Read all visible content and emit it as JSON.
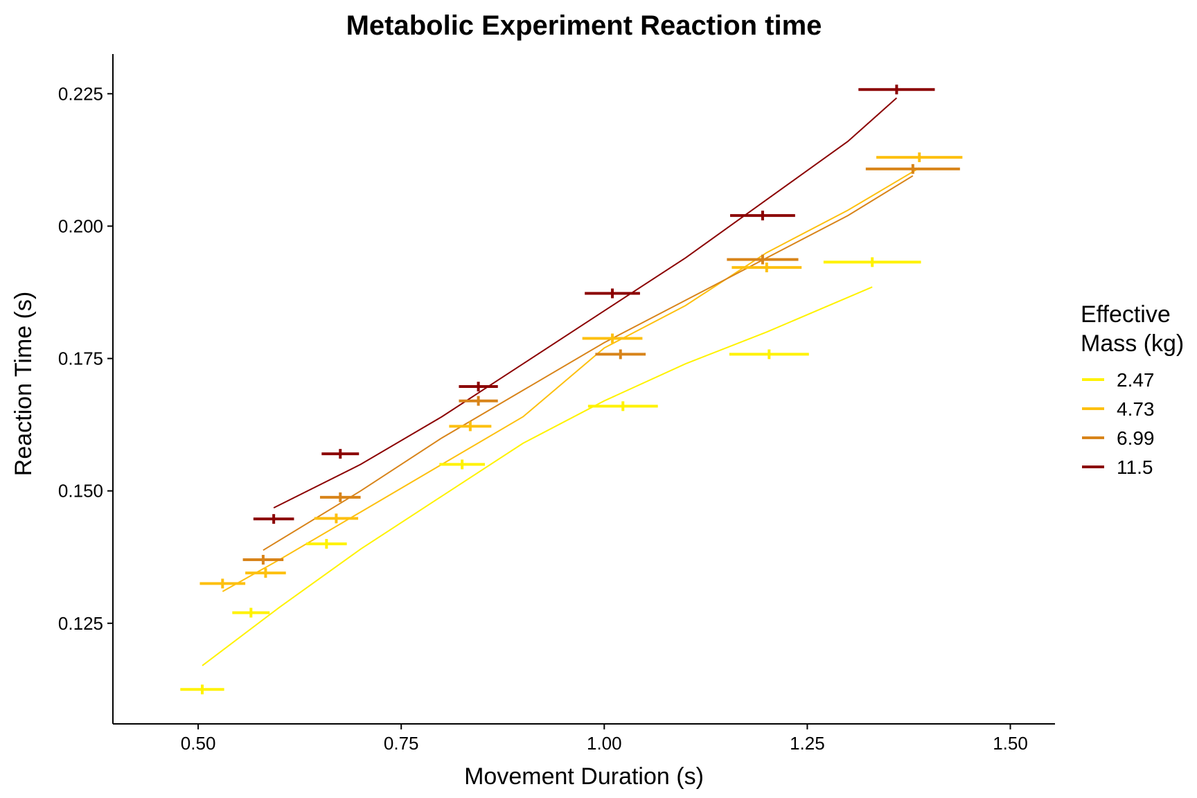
{
  "chart_data": {
    "type": "scatter",
    "title": "Metabolic Experiment Reaction time",
    "xlabel": "Movement Duration (s)",
    "ylabel": "Reaction Time (s)",
    "xlim": [
      0.395,
      1.555
    ],
    "ylim": [
      0.106,
      0.2325
    ],
    "x_ticks": [
      "0.50",
      "0.75",
      "1.00",
      "1.25",
      "1.50"
    ],
    "y_ticks": [
      "0.125",
      "0.150",
      "0.175",
      "0.200",
      "0.225"
    ],
    "grid": false,
    "legend": {
      "title_line1": "Effective",
      "title_line2": "Mass (kg)",
      "position": "right"
    },
    "series": [
      {
        "name": "2.47",
        "color": "#FFF200",
        "points": [
          {
            "x": 0.505,
            "y": 0.1125,
            "xerr": 0.027
          },
          {
            "x": 0.565,
            "y": 0.127,
            "xerr": 0.023
          },
          {
            "x": 0.658,
            "y": 0.14,
            "xerr": 0.025
          },
          {
            "x": 0.825,
            "y": 0.155,
            "xerr": 0.028
          },
          {
            "x": 1.023,
            "y": 0.166,
            "xerr": 0.043
          },
          {
            "x": 1.203,
            "y": 0.1758,
            "xerr": 0.049
          },
          {
            "x": 1.33,
            "y": 0.1932,
            "xerr": 0.06
          }
        ],
        "fit": [
          [
            0.505,
            0.117
          ],
          [
            0.6,
            0.128
          ],
          [
            0.7,
            0.139
          ],
          [
            0.8,
            0.149
          ],
          [
            0.9,
            0.159
          ],
          [
            1.0,
            0.167
          ],
          [
            1.1,
            0.174
          ],
          [
            1.2,
            0.18
          ],
          [
            1.33,
            0.1885
          ]
        ]
      },
      {
        "name": "4.73",
        "color": "#FDC010",
        "points": [
          {
            "x": 0.53,
            "y": 0.1325,
            "xerr": 0.028
          },
          {
            "x": 0.583,
            "y": 0.1345,
            "xerr": 0.025
          },
          {
            "x": 0.67,
            "y": 0.1448,
            "xerr": 0.027
          },
          {
            "x": 0.835,
            "y": 0.1622,
            "xerr": 0.026
          },
          {
            "x": 1.01,
            "y": 0.1788,
            "xerr": 0.037
          },
          {
            "x": 1.2,
            "y": 0.1922,
            "xerr": 0.043
          },
          {
            "x": 1.388,
            "y": 0.213,
            "xerr": 0.053
          }
        ],
        "fit": [
          [
            0.53,
            0.131
          ],
          [
            0.6,
            0.137
          ],
          [
            0.7,
            0.146
          ],
          [
            0.8,
            0.155
          ],
          [
            0.9,
            0.164
          ],
          [
            1.0,
            0.177
          ],
          [
            1.1,
            0.185
          ],
          [
            1.2,
            0.195
          ],
          [
            1.3,
            0.203
          ],
          [
            1.388,
            0.211
          ]
        ]
      },
      {
        "name": "6.99",
        "color": "#D8841A",
        "points": [
          {
            "x": 0.58,
            "y": 0.137,
            "xerr": 0.025
          },
          {
            "x": 0.675,
            "y": 0.1488,
            "xerr": 0.025
          },
          {
            "x": 0.845,
            "y": 0.167,
            "xerr": 0.024
          },
          {
            "x": 1.02,
            "y": 0.1758,
            "xerr": 0.031
          },
          {
            "x": 1.195,
            "y": 0.1937,
            "xerr": 0.044
          },
          {
            "x": 1.38,
            "y": 0.2108,
            "xerr": 0.058
          }
        ],
        "fit": [
          [
            0.58,
            0.1388
          ],
          [
            0.7,
            0.15
          ],
          [
            0.8,
            0.16
          ],
          [
            0.9,
            0.169
          ],
          [
            1.0,
            0.178
          ],
          [
            1.1,
            0.186
          ],
          [
            1.2,
            0.194
          ],
          [
            1.3,
            0.202
          ],
          [
            1.38,
            0.2095
          ]
        ]
      },
      {
        "name": "11.5",
        "color": "#8B0000",
        "points": [
          {
            "x": 0.593,
            "y": 0.1447,
            "xerr": 0.025
          },
          {
            "x": 0.675,
            "y": 0.157,
            "xerr": 0.023
          },
          {
            "x": 0.845,
            "y": 0.1697,
            "xerr": 0.024
          },
          {
            "x": 1.01,
            "y": 0.1873,
            "xerr": 0.034
          },
          {
            "x": 1.195,
            "y": 0.202,
            "xerr": 0.04
          },
          {
            "x": 1.36,
            "y": 0.2258,
            "xerr": 0.047
          }
        ],
        "fit": [
          [
            0.593,
            0.1468
          ],
          [
            0.7,
            0.155
          ],
          [
            0.8,
            0.164
          ],
          [
            0.9,
            0.174
          ],
          [
            1.0,
            0.184
          ],
          [
            1.1,
            0.194
          ],
          [
            1.2,
            0.205
          ],
          [
            1.3,
            0.216
          ],
          [
            1.36,
            0.2242
          ]
        ]
      }
    ]
  }
}
